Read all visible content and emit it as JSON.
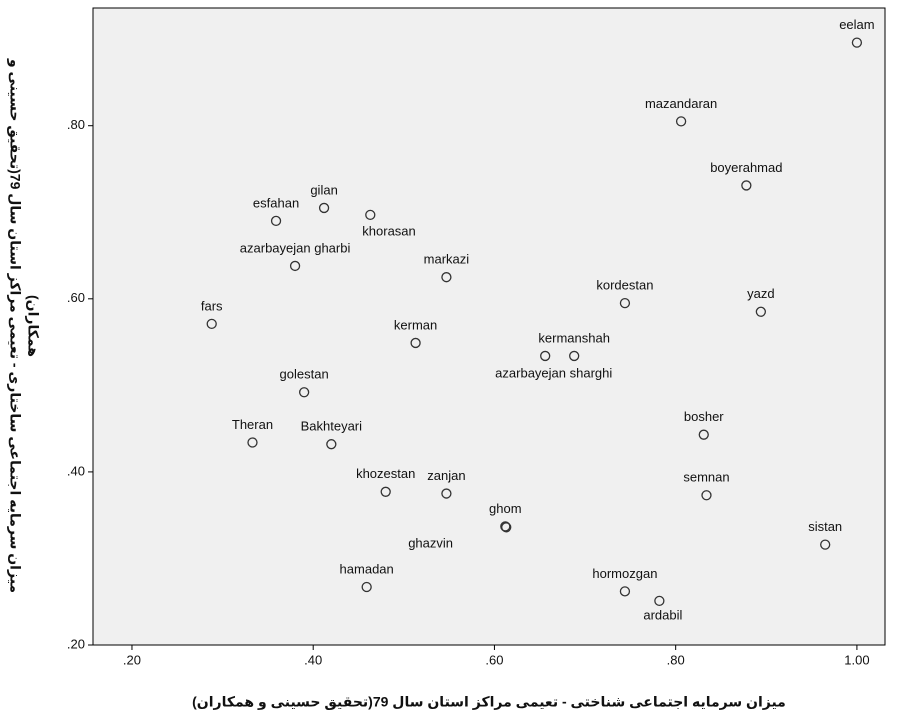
{
  "chart_data": {
    "type": "scatter",
    "xlabel": "میزان سرمایه اجتماعی شناختی - تعیمی مراکز استان سال 79(تحقیق حسینی و همکاران)",
    "ylabel": [
      "میزان سرمایه اجتماعی ساختاری - تعیمی مراکز استان سال 79(تحقیق حسینی و",
      "همکاران)"
    ],
    "xlim": [
      0.157,
      1.031
    ],
    "ylim": [
      0.2,
      0.936
    ],
    "xticks": [
      {
        "value": 0.2,
        "label": ".20"
      },
      {
        "value": 0.4,
        "label": ".40"
      },
      {
        "value": 0.6,
        "label": ".60"
      },
      {
        "value": 0.8,
        "label": ".80"
      },
      {
        "value": 1.0,
        "label": "1.00"
      }
    ],
    "yticks": [
      {
        "value": 0.2,
        "label": ".20"
      },
      {
        "value": 0.4,
        "label": ".40"
      },
      {
        "value": 0.6,
        "label": ".60"
      },
      {
        "value": 0.8,
        "label": ".80"
      }
    ],
    "color": "#333333",
    "labels": [
      "eelam",
      "mazandaran",
      "boyerahmad",
      "gilan",
      "esfahan",
      "khorasan",
      "azarbayejan gharbi",
      "markazi",
      "kordestan",
      "yazd",
      "fars",
      "kerman",
      "kermanshah",
      "azarbayejan sharghi",
      "golestan",
      "Theran",
      "Bakhteyari",
      "bosher",
      "khozestan",
      "zanjan",
      "semnan",
      "ghom",
      "ghazvin",
      "sistan",
      "hamadan",
      "hormozgan",
      "ardabil"
    ],
    "x": [
      1.0,
      0.806,
      0.878,
      0.412,
      0.359,
      0.463,
      0.38,
      0.547,
      0.744,
      0.894,
      0.288,
      0.513,
      0.688,
      0.656,
      0.39,
      0.333,
      0.42,
      0.831,
      0.48,
      0.547,
      0.834,
      0.612,
      0.613,
      0.965,
      0.459,
      0.744,
      0.782
    ],
    "y": [
      0.896,
      0.805,
      0.731,
      0.705,
      0.69,
      0.697,
      0.638,
      0.625,
      0.595,
      0.585,
      0.571,
      0.549,
      0.534,
      0.534,
      0.492,
      0.434,
      0.432,
      0.443,
      0.377,
      0.375,
      0.373,
      0.337,
      0.336,
      0.316,
      0.267,
      0.262,
      0.251
    ]
  }
}
